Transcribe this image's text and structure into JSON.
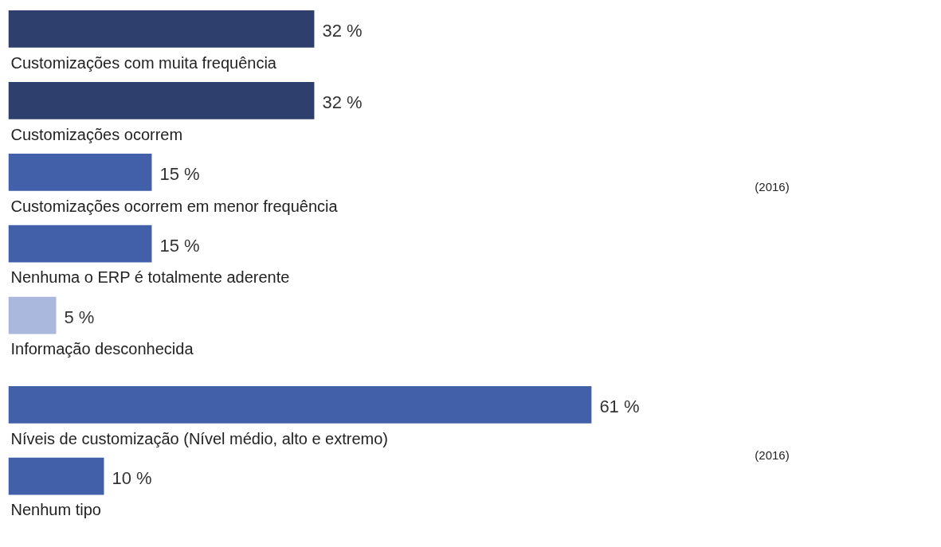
{
  "chart_data": [
    {
      "type": "bar",
      "orientation": "horizontal",
      "categories": [
        "Customizações com muita frequência",
        "Customizações ocorrem",
        "Customizações ocorrem em menor frequência",
        "Nenhuma o ERP é totalmente aderente",
        "Informação desconhecida"
      ],
      "values": [
        32,
        32,
        15,
        15,
        5
      ],
      "colors": [
        "#2e3f6e",
        "#2e3f6e",
        "#4260aa",
        "#4260aa",
        "#aab8de"
      ],
      "value_labels": [
        "32 %",
        "32 %",
        "15 %",
        "15 %",
        "5 %"
      ],
      "annotations": [
        "(2016)"
      ]
    },
    {
      "type": "bar",
      "orientation": "horizontal",
      "categories": [
        "Níveis de customização (Nível médio, alto e extremo)",
        "Nenhum tipo"
      ],
      "values": [
        61,
        10
      ],
      "colors": [
        "#4260aa",
        "#4260aa"
      ],
      "value_labels": [
        "61 %",
        "10 %"
      ],
      "annotations": [
        "(2016)"
      ]
    }
  ]
}
